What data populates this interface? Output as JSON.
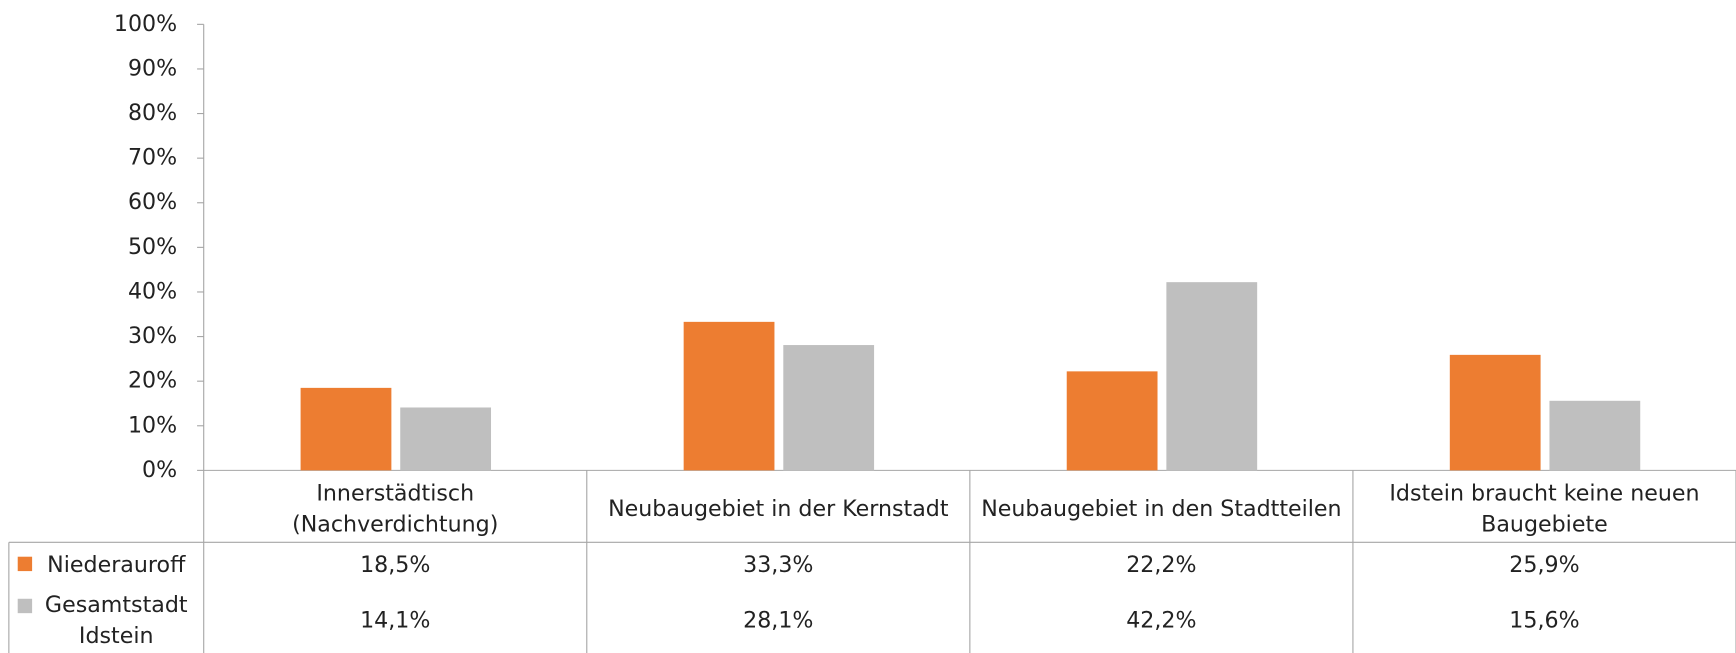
{
  "chart_data": {
    "type": "bar",
    "categories": [
      "Innerstädtisch (Nachverdichtung)",
      "Neubaugebiet in der Kernstadt",
      "Neubaugebiet in den Stadtteilen",
      "Idstein braucht keine neuen Baugebiete"
    ],
    "series": [
      {
        "name": "Niederauroff",
        "color": "#ed7d31",
        "values": [
          18.5,
          33.3,
          22.2,
          25.9
        ],
        "value_labels": [
          "18,5%",
          "33,3%",
          "22,2%",
          "25,9%"
        ]
      },
      {
        "name": "Gesamtstadt Idstein",
        "color": "#bfbfbf",
        "values": [
          14.1,
          28.1,
          42.2,
          15.6
        ],
        "value_labels": [
          "14,1%",
          "28,1%",
          "42,2%",
          "15,6%"
        ]
      }
    ],
    "ylim": [
      0,
      100
    ],
    "yticks": [
      {
        "value": 0,
        "label": "0%"
      },
      {
        "value": 10,
        "label": "10%"
      },
      {
        "value": 20,
        "label": "20%"
      },
      {
        "value": 30,
        "label": "30%"
      },
      {
        "value": 40,
        "label": "40%"
      },
      {
        "value": 50,
        "label": "50%"
      },
      {
        "value": 60,
        "label": "60%"
      },
      {
        "value": 70,
        "label": "70%"
      },
      {
        "value": 80,
        "label": "80%"
      },
      {
        "value": 90,
        "label": "90%"
      },
      {
        "value": 100,
        "label": "100%"
      }
    ],
    "grid": false,
    "data_table": true
  }
}
